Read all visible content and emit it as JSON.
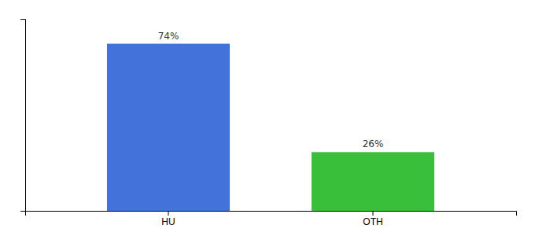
{
  "chart_data": {
    "type": "bar",
    "categories": [
      "HU",
      "OTH"
    ],
    "values": [
      74,
      26
    ],
    "value_labels": [
      "74%",
      "26%"
    ],
    "colors": [
      "#4472db",
      "#3abf3a"
    ],
    "ylim": [
      0,
      85
    ],
    "data_labels": true,
    "tick_labels": "x",
    "grid": false
  }
}
